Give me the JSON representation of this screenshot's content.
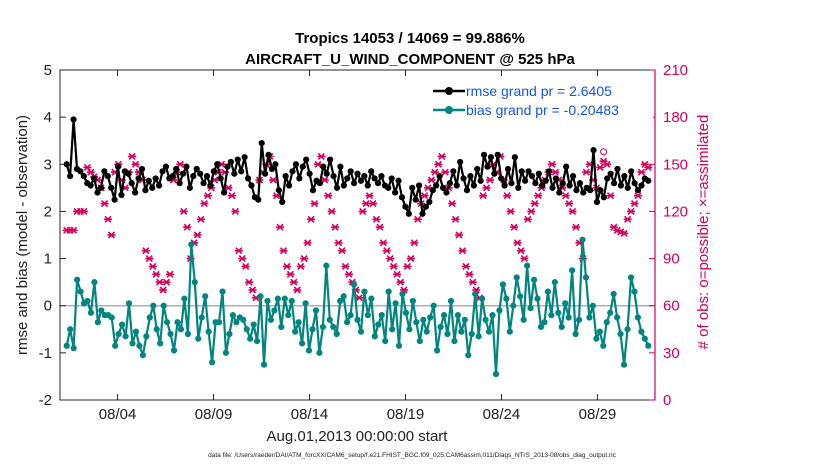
{
  "chart_data": {
    "type": "line",
    "title": "Tropics 14053 / 14069 = 99.886%",
    "subtitle": "AIRCRAFT_U_WIND_COMPONENT @ 525 hPa",
    "xlabel": "Aug.01,2013 00:00:00 start",
    "ylabel": "rmse and bias (model - observation)",
    "y2label": "# of obs: o=possible; ×=assimilated",
    "footer": "data file: /Users/raeder/DAI/ATM_forcXX/CAM6_setup/f.e21.FHIST_BGC.f09_025.CAM6assim.011/Diags_NTrS_2013-08/obs_diag_output.nc",
    "xlim": [
      1.0,
      32.0
    ],
    "ylim": [
      -2,
      5
    ],
    "y2lim": [
      0,
      210
    ],
    "xticks": [
      4,
      9,
      14,
      19,
      24,
      29
    ],
    "xtick_labels": [
      "08/04",
      "08/09",
      "08/14",
      "08/19",
      "08/24",
      "08/29"
    ],
    "yticks": [
      -2,
      -1,
      0,
      1,
      2,
      3,
      4,
      5
    ],
    "ytick_labels": [
      "-2",
      "-1",
      "0",
      "1",
      "2",
      "3",
      "4",
      "5"
    ],
    "y2ticks": [
      0,
      30,
      60,
      90,
      120,
      150,
      180,
      210
    ],
    "y2tick_labels": [
      "0",
      "30",
      "60",
      "90",
      "120",
      "150",
      "180",
      "210"
    ],
    "legend_location": "top-right",
    "series": [
      {
        "name": "rmse grand pr = 2.6405",
        "color": "#000000",
        "axis": "left",
        "values": [
          3.0,
          2.75,
          3.95,
          2.9,
          2.85,
          2.75,
          2.6,
          2.55,
          2.7,
          2.4,
          2.5,
          2.85,
          2.75,
          2.5,
          2.25,
          2.95,
          2.35,
          2.85,
          2.8,
          2.6,
          2.4,
          2.7,
          2.9,
          2.45,
          2.65,
          2.5,
          2.7,
          2.55,
          2.85,
          2.95,
          2.7,
          2.75,
          2.9,
          2.6,
          2.8,
          2.95,
          2.5,
          2.75,
          2.9,
          2.8,
          2.6,
          2.75,
          2.55,
          2.85,
          3.0,
          2.7,
          2.4,
          2.95,
          3.05,
          2.8,
          3.1,
          2.85,
          3.15,
          2.7,
          2.55,
          2.3,
          2.25,
          3.45,
          2.8,
          3.2,
          2.9,
          3.0,
          2.45,
          2.2,
          2.75,
          2.55,
          2.85,
          3.0,
          2.7,
          2.95,
          3.1,
          2.8,
          2.45,
          2.65,
          2.6,
          2.95,
          2.8,
          3.1,
          2.75,
          2.5,
          2.95,
          2.55,
          2.7,
          2.85,
          2.6,
          2.8,
          2.65,
          2.75,
          2.55,
          2.85,
          2.7,
          2.6,
          2.75,
          2.55,
          2.5,
          2.7,
          2.4,
          2.65,
          2.3,
          2.1,
          1.95,
          2.5,
          2.25,
          2.55,
          1.95,
          2.1,
          2.2,
          2.45,
          2.55,
          2.75,
          2.5,
          2.4,
          2.6,
          2.85,
          2.55,
          3.05,
          2.7,
          2.45,
          2.75,
          2.55,
          2.9,
          2.65,
          3.2,
          2.95,
          3.15,
          2.8,
          3.2,
          2.7,
          2.55,
          2.9,
          2.6,
          3.15,
          2.5,
          2.85,
          2.65,
          2.85,
          2.75,
          2.6,
          2.8,
          2.55,
          2.65,
          2.85,
          2.5,
          2.7,
          2.4,
          2.6,
          2.95,
          2.55,
          2.75,
          2.45,
          2.6,
          2.4,
          2.5,
          2.45,
          3.3,
          2.2,
          2.45,
          2.3,
          2.7,
          2.8,
          2.6,
          2.9,
          2.55,
          2.75,
          2.5,
          2.85,
          2.6,
          2.45,
          2.55,
          2.7,
          2.65
        ]
      },
      {
        "name": "bias grand pr = -0.20483",
        "color": "#00857f",
        "axis": "left",
        "values": [
          -0.85,
          -0.5,
          -0.9,
          0.55,
          0.3,
          0.05,
          0.1,
          -0.15,
          0.5,
          -0.35,
          -0.1,
          -0.2,
          -0.2,
          -0.25,
          -0.85,
          -0.6,
          -0.4,
          -0.65,
          0.05,
          -0.8,
          -0.55,
          -0.85,
          -1.05,
          -0.65,
          -0.25,
          0.0,
          -0.5,
          -0.8,
          0.0,
          -0.35,
          -0.6,
          -0.95,
          -0.35,
          -0.5,
          0.15,
          -0.6,
          1.3,
          0.5,
          -0.7,
          -0.25,
          0.2,
          -0.55,
          -1.2,
          -0.35,
          -0.35,
          0.3,
          -1.0,
          -0.6,
          -0.2,
          -0.35,
          -0.25,
          -0.3,
          -0.5,
          -0.7,
          -0.4,
          -0.75,
          0.2,
          -1.25,
          0.1,
          -0.3,
          -0.1,
          0.15,
          -0.45,
          0.15,
          -0.2,
          0.1,
          -0.55,
          -0.35,
          -0.8,
          0.05,
          -0.95,
          -0.5,
          -0.1,
          -1.0,
          -0.45,
          0.85,
          -0.3,
          -0.45,
          -0.6,
          0.1,
          0.2,
          -0.35,
          -0.2,
          0.45,
          -0.3,
          -0.55,
          0.3,
          -0.2,
          0.15,
          -0.65,
          -0.4,
          -0.2,
          -0.75,
          0.3,
          -0.5,
          0.05,
          -0.85,
          0.25,
          -0.15,
          -0.5,
          0.1,
          -0.35,
          -0.75,
          -0.3,
          -0.55,
          -0.25,
          0.0,
          -0.95,
          -0.45,
          -0.2,
          -0.6,
          0.1,
          -0.75,
          -0.2,
          -0.55,
          -0.3,
          -1.05,
          -0.6,
          0.25,
          -0.65,
          0.15,
          -0.3,
          -0.55,
          -0.2,
          -1.45,
          -0.1,
          0.45,
          0.15,
          -0.55,
          0.0,
          0.6,
          0.2,
          -0.3,
          0.85,
          -0.05,
          0.55,
          0.15,
          -0.45,
          -0.35,
          0.3,
          -0.2,
          0.5,
          -0.15,
          -0.45,
          0.05,
          -0.25,
          0.75,
          -0.6,
          -0.3,
          1.4,
          0.6,
          -0.25,
          0.0,
          -0.7,
          -0.55,
          -0.85,
          -0.35,
          -0.15,
          0.25,
          -0.25,
          -0.6,
          -1.25,
          -0.5,
          0.6,
          0.3,
          -0.25,
          -0.55,
          -0.7,
          -0.85
        ]
      },
      {
        "name": "possible obs",
        "color": "#d6005b",
        "axis": "right",
        "marker": "o",
        "values": [
          108,
          108,
          108,
          120,
          120,
          120,
          148,
          145,
          142,
          140,
          135,
          125,
          115,
          105,
          145,
          150,
          140,
          135,
          145,
          155,
          150,
          145,
          140,
          95,
          90,
          85,
          80,
          75,
          70,
          75,
          80,
          140,
          145,
          150,
          120,
          110,
          90,
          100,
          105,
          115,
          125,
          130,
          135,
          140,
          145,
          150,
          145,
          135,
          130,
          120,
          95,
          90,
          85,
          75,
          70,
          65,
          140,
          145,
          150,
          155,
          140,
          130,
          110,
          95,
          85,
          80,
          75,
          70,
          85,
          90,
          100,
          115,
          125,
          150,
          155,
          140,
          130,
          120,
          110,
          100,
          95,
          85,
          80,
          75,
          70,
          65,
          120,
          125,
          130,
          125,
          115,
          110,
          100,
          95,
          90,
          85,
          80,
          75,
          70,
          85,
          90,
          100,
          115,
          125,
          130,
          135,
          140,
          145,
          150,
          155,
          145,
          135,
          125,
          115,
          105,
          95,
          85,
          80,
          75,
          70,
          65,
          130,
          135,
          140,
          150,
          145,
          155,
          140,
          130,
          120,
          110,
          100,
          95,
          90,
          115,
          120,
          125,
          130,
          135,
          140,
          145,
          150,
          145,
          140,
          135,
          130,
          125,
          120,
          110,
          100,
          90,
          145,
          150,
          140,
          135,
          148,
          158,
          150,
          130,
          110,
          108,
          107,
          106,
          115,
          120,
          125,
          130,
          145,
          150,
          148
        ]
      },
      {
        "name": "assimilated obs",
        "color": "#d6005b",
        "axis": "right",
        "marker": "x",
        "values": [
          108,
          108,
          108,
          120,
          120,
          120,
          148,
          145,
          142,
          140,
          135,
          125,
          115,
          105,
          145,
          150,
          140,
          135,
          145,
          155,
          150,
          145,
          140,
          95,
          90,
          85,
          80,
          75,
          70,
          75,
          80,
          140,
          145,
          150,
          120,
          110,
          90,
          100,
          105,
          115,
          125,
          130,
          135,
          140,
          145,
          150,
          145,
          135,
          130,
          120,
          95,
          90,
          85,
          75,
          70,
          65,
          140,
          145,
          150,
          155,
          140,
          130,
          110,
          95,
          85,
          80,
          75,
          70,
          85,
          90,
          100,
          115,
          125,
          150,
          155,
          140,
          130,
          120,
          110,
          100,
          95,
          85,
          80,
          75,
          70,
          65,
          120,
          125,
          130,
          125,
          115,
          110,
          100,
          95,
          90,
          85,
          80,
          75,
          70,
          85,
          90,
          100,
          115,
          125,
          130,
          135,
          140,
          145,
          150,
          155,
          145,
          135,
          125,
          115,
          105,
          95,
          85,
          80,
          75,
          70,
          65,
          130,
          135,
          140,
          150,
          145,
          155,
          140,
          130,
          120,
          110,
          100,
          95,
          90,
          115,
          120,
          125,
          130,
          135,
          140,
          145,
          150,
          145,
          140,
          135,
          130,
          125,
          120,
          110,
          100,
          90,
          145,
          150,
          140,
          135,
          148,
          152,
          150,
          130,
          110,
          108,
          107,
          106,
          115,
          120,
          125,
          130,
          145,
          150,
          148
        ]
      }
    ],
    "zero_line": 0
  }
}
